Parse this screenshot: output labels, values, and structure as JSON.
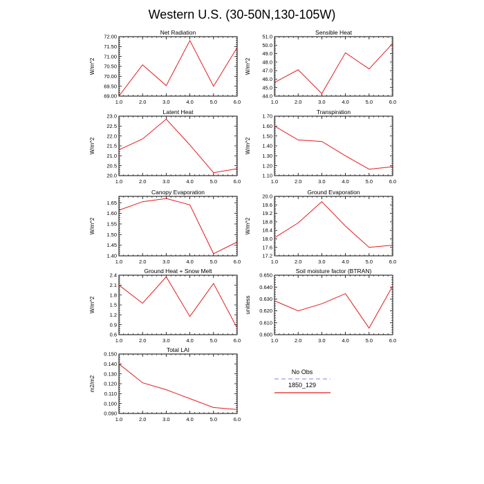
{
  "figure": {
    "title": "Western U.S. (30-50N,130-105W)"
  },
  "legend": {
    "entries": [
      {
        "name": "No Obs",
        "color": "#9a9ae0",
        "dash": true
      },
      {
        "name": "1850_129",
        "color": "#e41a1c",
        "dash": false
      }
    ]
  },
  "chart_data": [
    {
      "type": "line",
      "title": "Net Radiation",
      "ylabel": "W/m^2",
      "x": [
        1,
        2,
        3,
        4,
        5,
        6
      ],
      "xticks": [
        "1.0",
        "2.0",
        "3.0",
        "4.0",
        "5.0",
        "6.0"
      ],
      "xlim": [
        1,
        6
      ],
      "ylim": [
        69.0,
        72.0
      ],
      "yticks": [
        "69.00",
        "69.50",
        "70.00",
        "70.50",
        "71.00",
        "71.50",
        "72.00"
      ],
      "series": [
        {
          "values": [
            69.0,
            70.58,
            69.53,
            71.8,
            69.5,
            71.45
          ],
          "color": "#e41a1c"
        }
      ]
    },
    {
      "type": "line",
      "title": "Sensible Heat",
      "ylabel": "W/m^2",
      "x": [
        1,
        2,
        3,
        4,
        5,
        6
      ],
      "xticks": [
        "1.0",
        "2.0",
        "3.0",
        "4.0",
        "5.0",
        "6.0"
      ],
      "xlim": [
        1,
        6
      ],
      "ylim": [
        44.0,
        51.0
      ],
      "yticks": [
        "44.0",
        "45.0",
        "46.0",
        "47.0",
        "48.0",
        "49.0",
        "50.0",
        "51.0"
      ],
      "series": [
        {
          "values": [
            45.6,
            47.1,
            44.3,
            49.1,
            47.2,
            50.2
          ],
          "color": "#e41a1c"
        }
      ]
    },
    {
      "type": "line",
      "title": "Latent Heat",
      "ylabel": "W/m^2",
      "x": [
        1,
        2,
        3,
        4,
        5,
        6
      ],
      "xticks": [
        "1.0",
        "2.0",
        "3.0",
        "4.0",
        "5.0",
        "6.0"
      ],
      "xlim": [
        1,
        6
      ],
      "ylim": [
        20.0,
        23.0
      ],
      "yticks": [
        "20.0",
        "20.5",
        "21.0",
        "21.5",
        "22.0",
        "22.5",
        "23.0"
      ],
      "series": [
        {
          "values": [
            21.3,
            21.85,
            22.85,
            21.55,
            20.15,
            20.35
          ],
          "color": "#e41a1c"
        }
      ]
    },
    {
      "type": "line",
      "title": "Transpiration",
      "ylabel": "W/m^2",
      "x": [
        1,
        2,
        3,
        4,
        5,
        6
      ],
      "xticks": [
        "1.0",
        "2.0",
        "3.0",
        "4.0",
        "5.0",
        "6.0"
      ],
      "xlim": [
        1,
        6
      ],
      "ylim": [
        1.1,
        1.7
      ],
      "yticks": [
        "1.10",
        "1.20",
        "1.30",
        "1.40",
        "1.50",
        "1.60",
        "1.70"
      ],
      "series": [
        {
          "values": [
            1.6,
            1.46,
            1.445,
            1.3,
            1.165,
            1.19
          ],
          "color": "#e41a1c"
        }
      ]
    },
    {
      "type": "line",
      "title": "Canopy Evaporation",
      "ylabel": "W/m^2",
      "x": [
        1,
        2,
        3,
        4,
        5,
        6
      ],
      "xticks": [
        "1.0",
        "2.0",
        "3.0",
        "4.0",
        "5.0",
        "6.0"
      ],
      "xlim": [
        1,
        6
      ],
      "ylim": [
        1.4,
        1.68
      ],
      "yticks": [
        "1.40",
        "1.45",
        "1.50",
        "1.55",
        "1.60",
        "1.65"
      ],
      "series": [
        {
          "values": [
            1.615,
            1.655,
            1.67,
            1.64,
            1.41,
            1.465
          ],
          "color": "#e41a1c"
        }
      ]
    },
    {
      "type": "line",
      "title": "Ground Evaporation",
      "ylabel": "W/m^2",
      "x": [
        1,
        2,
        3,
        4,
        5,
        6
      ],
      "xticks": [
        "1.0",
        "2.0",
        "3.0",
        "4.0",
        "5.0",
        "6.0"
      ],
      "xlim": [
        1,
        6
      ],
      "ylim": [
        17.2,
        20.0
      ],
      "yticks": [
        "17.2",
        "17.6",
        "18.0",
        "18.4",
        "18.8",
        "19.2",
        "19.6",
        "20.0"
      ],
      "series": [
        {
          "values": [
            18.05,
            18.75,
            19.75,
            18.6,
            17.6,
            17.7
          ],
          "color": "#e41a1c"
        }
      ]
    },
    {
      "type": "line",
      "title": "Ground Heat + Snow Melt",
      "ylabel": "W/m^2",
      "x": [
        1,
        2,
        3,
        4,
        5,
        6
      ],
      "xticks": [
        "1.0",
        "2.0",
        "3.0",
        "4.0",
        "5.0",
        "6.0"
      ],
      "xlim": [
        1,
        6
      ],
      "ylim": [
        0.6,
        2.4
      ],
      "yticks": [
        "0.6",
        "0.9",
        "1.2",
        "1.5",
        "1.8",
        "2.1",
        "2.4"
      ],
      "series": [
        {
          "values": [
            2.1,
            1.55,
            2.35,
            1.15,
            2.15,
            0.8
          ],
          "color": "#e41a1c"
        }
      ]
    },
    {
      "type": "line",
      "title": "Soil moisture factor (BTRAN)",
      "ylabel": "unitless",
      "x": [
        1,
        2,
        3,
        4,
        5,
        6
      ],
      "xticks": [
        "1.0",
        "2.0",
        "3.0",
        "4.0",
        "5.0",
        "6.0"
      ],
      "xlim": [
        1,
        6
      ],
      "ylim": [
        0.6,
        0.65
      ],
      "yticks": [
        "0.600",
        "0.610",
        "0.620",
        "0.630",
        "0.640",
        "0.650"
      ],
      "series": [
        {
          "values": [
            0.6285,
            0.62,
            0.626,
            0.6345,
            0.6055,
            0.641
          ],
          "color": "#e41a1c"
        }
      ]
    },
    {
      "type": "line",
      "title": "Total LAI",
      "ylabel": "m2/m2",
      "x": [
        1,
        2,
        3,
        4,
        5,
        6
      ],
      "xticks": [
        "1.0",
        "2.0",
        "3.0",
        "4.0",
        "5.0",
        "6.0"
      ],
      "xlim": [
        1,
        6
      ],
      "ylim": [
        0.09,
        0.15
      ],
      "yticks": [
        "0.090",
        "0.100",
        "0.110",
        "0.120",
        "0.130",
        "0.140",
        "0.150"
      ],
      "series": [
        {
          "values": [
            0.14,
            0.121,
            0.114,
            0.105,
            0.096,
            0.094
          ],
          "color": "#e41a1c"
        }
      ]
    }
  ]
}
